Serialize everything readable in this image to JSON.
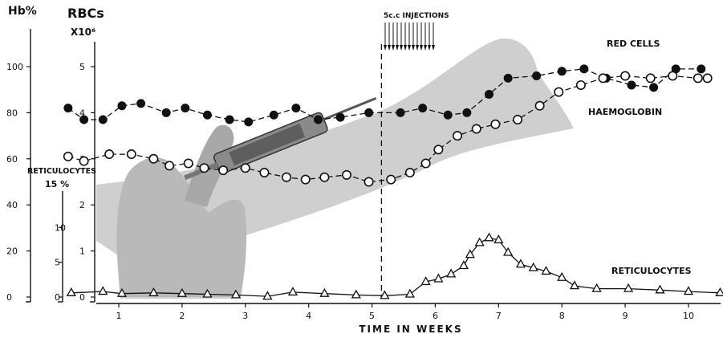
{
  "chart_data": {
    "type": "line",
    "xlabel": "TIME IN WEEKS",
    "x_ticks": [
      1,
      2,
      3,
      4,
      5,
      6,
      7,
      8,
      9,
      10
    ],
    "xlim": [
      0.2,
      10.35
    ],
    "axes": {
      "hb": {
        "label": "Hb%",
        "ticks": [
          0,
          20,
          40,
          60,
          80,
          100
        ],
        "ylim": [
          0,
          100
        ]
      },
      "rbc": {
        "label": "RBCs",
        "sublabel": "X10⁶",
        "ticks": [
          0,
          1,
          2,
          3,
          4,
          5
        ],
        "ylim": [
          0,
          5
        ]
      },
      "retic": {
        "label": "RETICULOCYTES",
        "sublabel": "15 %",
        "ticks": [
          0,
          5,
          10
        ],
        "ylim": [
          0,
          15
        ]
      }
    },
    "annotation": {
      "label": "5c.c INJECTIONS",
      "x": 5.15
    },
    "series": [
      {
        "name": "RED CELLS",
        "axis": "rbc",
        "marker": "filled-circle",
        "points": [
          [
            0.2,
            4.1
          ],
          [
            0.45,
            3.85
          ],
          [
            0.75,
            3.85
          ],
          [
            1.05,
            4.15
          ],
          [
            1.35,
            4.2
          ],
          [
            1.75,
            4.0
          ],
          [
            2.05,
            4.1
          ],
          [
            2.4,
            3.95
          ],
          [
            2.75,
            3.85
          ],
          [
            3.05,
            3.8
          ],
          [
            3.45,
            3.95
          ],
          [
            3.8,
            4.1
          ],
          [
            4.15,
            3.85
          ],
          [
            4.5,
            3.9
          ],
          [
            4.95,
            4.0
          ],
          [
            5.45,
            4.0
          ],
          [
            5.8,
            4.1
          ],
          [
            6.2,
            3.95
          ],
          [
            6.5,
            4.0
          ],
          [
            6.85,
            4.4
          ],
          [
            7.15,
            4.75
          ],
          [
            7.6,
            4.8
          ],
          [
            8.0,
            4.9
          ],
          [
            8.35,
            4.95
          ],
          [
            8.7,
            4.75
          ],
          [
            9.1,
            4.6
          ],
          [
            9.45,
            4.55
          ],
          [
            9.8,
            4.95
          ],
          [
            10.2,
            4.95
          ]
        ]
      },
      {
        "name": "HAEMOGLOBIN",
        "axis": "hb",
        "marker": "open-circle",
        "points": [
          [
            0.2,
            61
          ],
          [
            0.45,
            59
          ],
          [
            0.85,
            62
          ],
          [
            1.2,
            62
          ],
          [
            1.55,
            60
          ],
          [
            1.8,
            57
          ],
          [
            2.1,
            58
          ],
          [
            2.35,
            56
          ],
          [
            2.65,
            55
          ],
          [
            3.0,
            56
          ],
          [
            3.3,
            54
          ],
          [
            3.65,
            52
          ],
          [
            3.95,
            51
          ],
          [
            4.25,
            52
          ],
          [
            4.6,
            53
          ],
          [
            4.95,
            50
          ],
          [
            5.3,
            51
          ],
          [
            5.6,
            54
          ],
          [
            5.85,
            58
          ],
          [
            6.05,
            64
          ],
          [
            6.35,
            70
          ],
          [
            6.65,
            73
          ],
          [
            6.95,
            75
          ],
          [
            7.3,
            77
          ],
          [
            7.65,
            83
          ],
          [
            7.95,
            89
          ],
          [
            8.3,
            92
          ],
          [
            8.65,
            95
          ],
          [
            9.0,
            96
          ],
          [
            9.4,
            95
          ],
          [
            9.75,
            96
          ],
          [
            10.15,
            95
          ],
          [
            10.3,
            95
          ]
        ]
      },
      {
        "name": "RETICULOCYTES",
        "axis": "retic",
        "marker": "open-triangle",
        "points": [
          [
            0.25,
            0.6
          ],
          [
            0.75,
            0.8
          ],
          [
            1.05,
            0.5
          ],
          [
            1.55,
            0.6
          ],
          [
            2.0,
            0.5
          ],
          [
            2.4,
            0.4
          ],
          [
            2.85,
            0.3
          ],
          [
            3.35,
            0.1
          ],
          [
            3.75,
            0.7
          ],
          [
            4.25,
            0.5
          ],
          [
            4.75,
            0.3
          ],
          [
            5.2,
            0.2
          ],
          [
            5.6,
            0.4
          ],
          [
            5.85,
            2.2
          ],
          [
            6.05,
            2.6
          ],
          [
            6.25,
            3.3
          ],
          [
            6.45,
            4.5
          ],
          [
            6.55,
            6.1
          ],
          [
            6.7,
            7.8
          ],
          [
            6.85,
            8.5
          ],
          [
            7.0,
            8.2
          ],
          [
            7.15,
            6.4
          ],
          [
            7.35,
            4.7
          ],
          [
            7.55,
            4.2
          ],
          [
            7.75,
            3.7
          ],
          [
            8.0,
            2.8
          ],
          [
            8.2,
            1.6
          ],
          [
            8.55,
            1.2
          ],
          [
            9.05,
            1.2
          ],
          [
            9.55,
            1.0
          ],
          [
            10.0,
            0.8
          ],
          [
            10.5,
            0.6
          ],
          [
            10.95,
            0.1
          ]
        ]
      }
    ]
  }
}
